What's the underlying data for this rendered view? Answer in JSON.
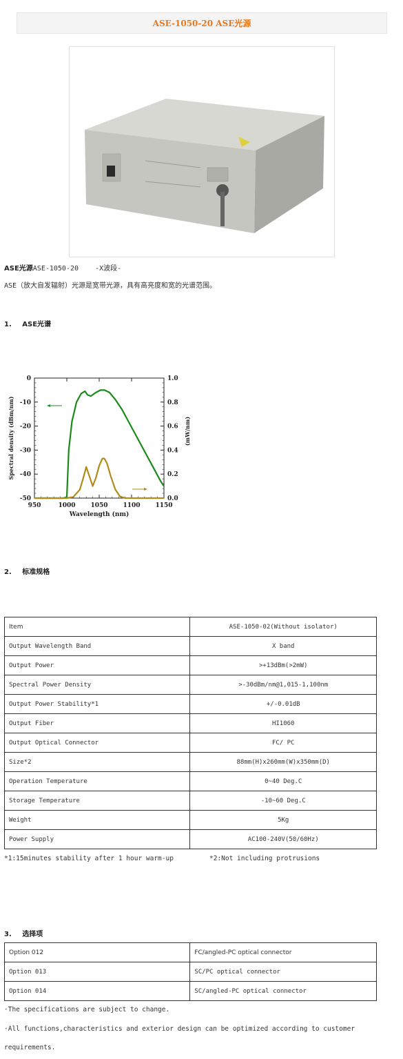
{
  "header": {
    "title": "ASE-1050-20 ASE光源"
  },
  "intro": {
    "model_bold": "ASE光源",
    "model_rest": "ASE-1050-20    -X波段-",
    "description": "ASE（放大自发辐射）光源是宽带光源，具有高亮度和宽的光谱范围。"
  },
  "section1": {
    "number": "1.",
    "title": "ASE光谱"
  },
  "chart_data": {
    "type": "line",
    "xlabel": "Wavelength (nm)",
    "ylabel": "Spectral density (dBm/nm)",
    "y2label": "(mW/nm)",
    "xlim": [
      950,
      1150
    ],
    "ylim": [
      -50,
      0
    ],
    "y2lim": [
      0,
      1.0
    ],
    "x_ticks": [
      "950",
      "1000",
      "1050",
      "1100",
      "1150"
    ],
    "y_ticks": [
      "0",
      "-10",
      "-20",
      "-30",
      "-40",
      "-50"
    ],
    "y2_ticks": [
      "1.0",
      "0.8",
      "0.6",
      "0.4",
      "0.2",
      "0.0"
    ],
    "series": [
      {
        "axis": "left",
        "color": "#1a8a1a",
        "x": [
          950,
          995,
          1000,
          1003,
          1008,
          1015,
          1022,
          1028,
          1032,
          1037,
          1045,
          1052,
          1058,
          1066,
          1075,
          1085,
          1095,
          1105,
          1115,
          1125,
          1135,
          1145,
          1150
        ],
        "y": [
          -50,
          -50,
          -49.5,
          -30,
          -18,
          -10,
          -6.5,
          -5.5,
          -7,
          -7.5,
          -6,
          -5,
          -5,
          -6,
          -9,
          -13,
          -18,
          -23,
          -28,
          -33,
          -38,
          -43,
          -45
        ]
      },
      {
        "axis": "right",
        "color": "#b08a1a",
        "x": [
          950,
          1000,
          1010,
          1020,
          1025,
          1030,
          1035,
          1040,
          1045,
          1050,
          1055,
          1058,
          1062,
          1068,
          1075,
          1082,
          1090,
          1150
        ],
        "y": [
          0,
          0,
          0.01,
          0.07,
          0.16,
          0.26,
          0.18,
          0.1,
          0.17,
          0.27,
          0.33,
          0.33,
          0.29,
          0.18,
          0.07,
          0.015,
          0,
          0
        ]
      }
    ]
  },
  "section2": {
    "number": "2.",
    "title": "标准规格"
  },
  "spec_table": {
    "rows": [
      [
        "Item",
        "ASE-1050-02(Without isolator)"
      ],
      [
        "Output Wavelength Band",
        "X band"
      ],
      [
        "Output Power",
        ">+13dBm(>2mW)"
      ],
      [
        "Spectral Power Density",
        ">-30dBm/nm@1,015-1,100nm"
      ],
      [
        "Output Power Stability*1",
        "+/-0.01dB"
      ],
      [
        "Output Fiber",
        "HI1060"
      ],
      [
        "Output Optical Connector",
        "FC/ PC"
      ],
      [
        "Size*2",
        "88mm(H)x260mm(W)x350mm(D)"
      ],
      [
        "Operation Temperature",
        "0~40 Deg.C"
      ],
      [
        "Storage Temperature",
        "-10~60 Deg.C"
      ],
      [
        "Weight",
        "5Kg"
      ],
      [
        "Power Supply",
        "AC100-240V(50/60Hz)"
      ]
    ]
  },
  "notes": {
    "note1": "*1:15minutes stability after 1 hour warm-up",
    "note2": "*2:Not including protrusions"
  },
  "section3": {
    "number": "3.",
    "title": "选择项"
  },
  "option_table": {
    "rows": [
      [
        "Option 012",
        "FC/angled-PC  optical connector"
      ],
      [
        "Option 013",
        "SC/PC optical connector"
      ],
      [
        "Option 014",
        "SC/angled-PC optical connector"
      ]
    ]
  },
  "footer": {
    "line1": "·The specifications are subject to change.",
    "line2": "·All functions,characteristics and exterior design can be optimized according to customer",
    "line3": "requirements."
  }
}
